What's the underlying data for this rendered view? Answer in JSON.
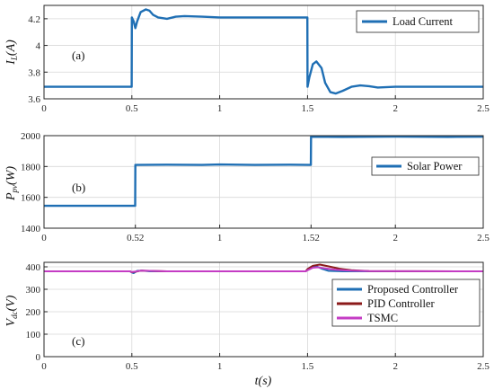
{
  "chart_data": [
    {
      "panel": "(a)",
      "type": "line",
      "ylabel_main": "I",
      "ylabel_sub": "L",
      "ylabel_unit": "(A)",
      "xlim": [
        0,
        2.5
      ],
      "ylim": [
        3.6,
        4.3
      ],
      "xticks": [
        0,
        0.5,
        1,
        1.5,
        2,
        2.5
      ],
      "xticklabels": [
        "0",
        "0.5",
        "1",
        "1.5",
        "2",
        "2.5"
      ],
      "yticks": [
        3.6,
        3.8,
        4.0,
        4.2
      ],
      "yticklabels": [
        "3.6",
        "3.8",
        "4",
        "4.2"
      ],
      "grid": true,
      "legend_position": "top-right",
      "series": [
        {
          "name": "Load Current",
          "color": "#1f6fb4",
          "x": [
            0,
            0.499,
            0.5,
            0.51,
            0.52,
            0.53,
            0.55,
            0.58,
            0.6,
            0.62,
            0.65,
            0.7,
            0.75,
            0.8,
            0.9,
            1.0,
            1.2,
            1.4,
            1.499,
            1.5,
            1.51,
            1.53,
            1.55,
            1.58,
            1.6,
            1.63,
            1.66,
            1.7,
            1.75,
            1.8,
            1.85,
            1.9,
            2.0,
            2.2,
            2.5
          ],
          "y": [
            3.69,
            3.69,
            4.21,
            4.18,
            4.13,
            4.18,
            4.25,
            4.27,
            4.26,
            4.23,
            4.21,
            4.2,
            4.215,
            4.22,
            4.215,
            4.21,
            4.21,
            4.21,
            4.21,
            3.69,
            3.76,
            3.86,
            3.88,
            3.83,
            3.72,
            3.65,
            3.64,
            3.66,
            3.69,
            3.7,
            3.695,
            3.685,
            3.69,
            3.69,
            3.69
          ]
        }
      ]
    },
    {
      "panel": "(b)",
      "type": "line",
      "ylabel_main": "P",
      "ylabel_sub": "pv",
      "ylabel_unit": "(W)",
      "xlim": [
        0,
        2.5
      ],
      "ylim": [
        1400,
        2000
      ],
      "xticks": [
        0,
        0.52,
        1,
        1.52,
        2,
        2.5
      ],
      "xticklabels": [
        "0",
        "0.52",
        "1",
        "1.52",
        "2",
        "2.5"
      ],
      "yticks": [
        1400,
        1600,
        1800,
        2000
      ],
      "yticklabels": [
        "1400",
        "1600",
        "1800",
        "2000"
      ],
      "grid": true,
      "legend_position": "top-right",
      "series": [
        {
          "name": "Solar Power",
          "color": "#1f6fb4",
          "x": [
            0,
            0.519,
            0.52,
            0.7,
            0.9,
            1.0,
            1.2,
            1.4,
            1.519,
            1.52,
            1.7,
            2.0,
            2.3,
            2.5
          ],
          "y": [
            1545,
            1545,
            1810,
            1812,
            1810,
            1813,
            1810,
            1812,
            1810,
            1993,
            1992,
            1994,
            1992,
            1993
          ]
        }
      ]
    },
    {
      "panel": "(c)",
      "type": "line",
      "ylabel_main": "V",
      "ylabel_sub": "dc",
      "ylabel_unit": "(V)",
      "xlim": [
        0,
        2.5
      ],
      "ylim": [
        0,
        420
      ],
      "xticks": [
        0,
        0.5,
        1,
        1.5,
        2,
        2.5
      ],
      "xticklabels": [
        "0",
        "0.5",
        "1",
        "1.5",
        "2",
        "2.5"
      ],
      "yticks": [
        0,
        100,
        200,
        300,
        400
      ],
      "yticklabels": [
        "0",
        "100",
        "200",
        "300",
        "400"
      ],
      "xlabel": "t(s)",
      "grid": true,
      "legend_position": "right",
      "series": [
        {
          "name": "Proposed Controller",
          "color": "#1f6fb4",
          "x": [
            0,
            0.49,
            0.5,
            0.51,
            0.53,
            0.56,
            0.6,
            1.49,
            1.5,
            1.52,
            1.55,
            1.58,
            1.62,
            1.7,
            2.5
          ],
          "y": [
            380,
            380,
            375,
            372,
            382,
            383,
            380,
            380,
            388,
            400,
            403,
            392,
            382,
            380,
            380
          ]
        },
        {
          "name": "PID Controller",
          "color": "#8b1a1a",
          "x": [
            0,
            0.49,
            0.5,
            0.52,
            0.55,
            0.6,
            0.7,
            1.49,
            1.5,
            1.53,
            1.57,
            1.62,
            1.68,
            1.75,
            1.85,
            2.5
          ],
          "y": [
            380,
            380,
            376,
            378,
            383,
            382,
            380,
            380,
            390,
            405,
            410,
            402,
            392,
            385,
            381,
            380
          ]
        },
        {
          "name": "TSMC",
          "color": "#c43cc4",
          "x": [
            0,
            0.49,
            0.5,
            0.52,
            0.55,
            0.6,
            0.7,
            1.49,
            1.5,
            1.53,
            1.56,
            1.6,
            1.66,
            1.75,
            1.85,
            2.5
          ],
          "y": [
            380,
            380,
            377,
            379,
            383,
            382,
            380,
            380,
            385,
            396,
            398,
            393,
            387,
            383,
            381,
            380
          ]
        }
      ]
    }
  ]
}
